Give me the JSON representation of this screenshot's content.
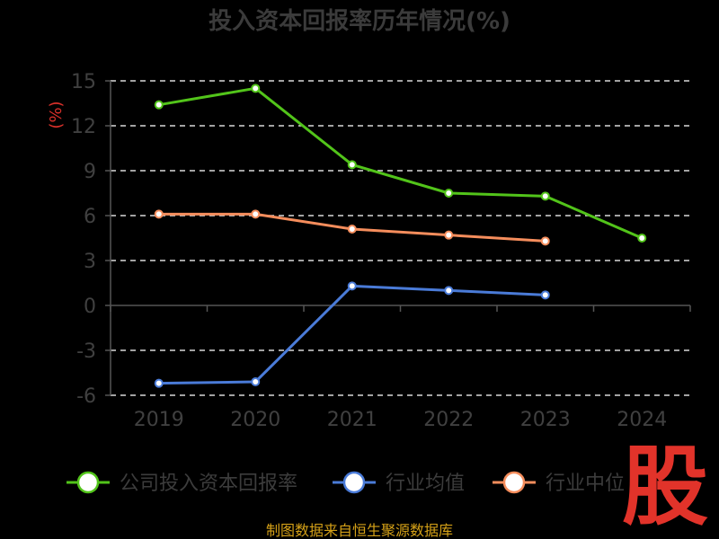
{
  "chart_data": {
    "type": "line",
    "title": "投入资本回报率历年情况(%)",
    "ylabel": "(%)",
    "xlabel": "",
    "categories": [
      "2019",
      "2020",
      "2021",
      "2022",
      "2023",
      "2024"
    ],
    "yticks": [
      15,
      12,
      9,
      6,
      3,
      0,
      -3,
      -6
    ],
    "ylim": [
      -6,
      15
    ],
    "grid": true,
    "legend_position": "bottom",
    "series": [
      {
        "name": "公司投入资本回报率",
        "color": "#52c41a",
        "values": [
          13.4,
          14.5,
          9.4,
          7.5,
          7.3,
          4.5
        ]
      },
      {
        "name": "行业均值",
        "color": "#4a7bd8",
        "values": [
          -5.2,
          -5.1,
          1.3,
          1.0,
          0.7,
          null
        ]
      },
      {
        "name": "行业中位数",
        "color": "#f58d5c",
        "values": [
          6.1,
          6.1,
          5.1,
          4.7,
          4.3,
          null
        ]
      }
    ]
  },
  "legend_visible_labels": [
    "公司投入资本回报率",
    "行业均值",
    "行业中位"
  ],
  "source_text": "制图数据来自恒生聚源数据库",
  "watermark_text": "股"
}
